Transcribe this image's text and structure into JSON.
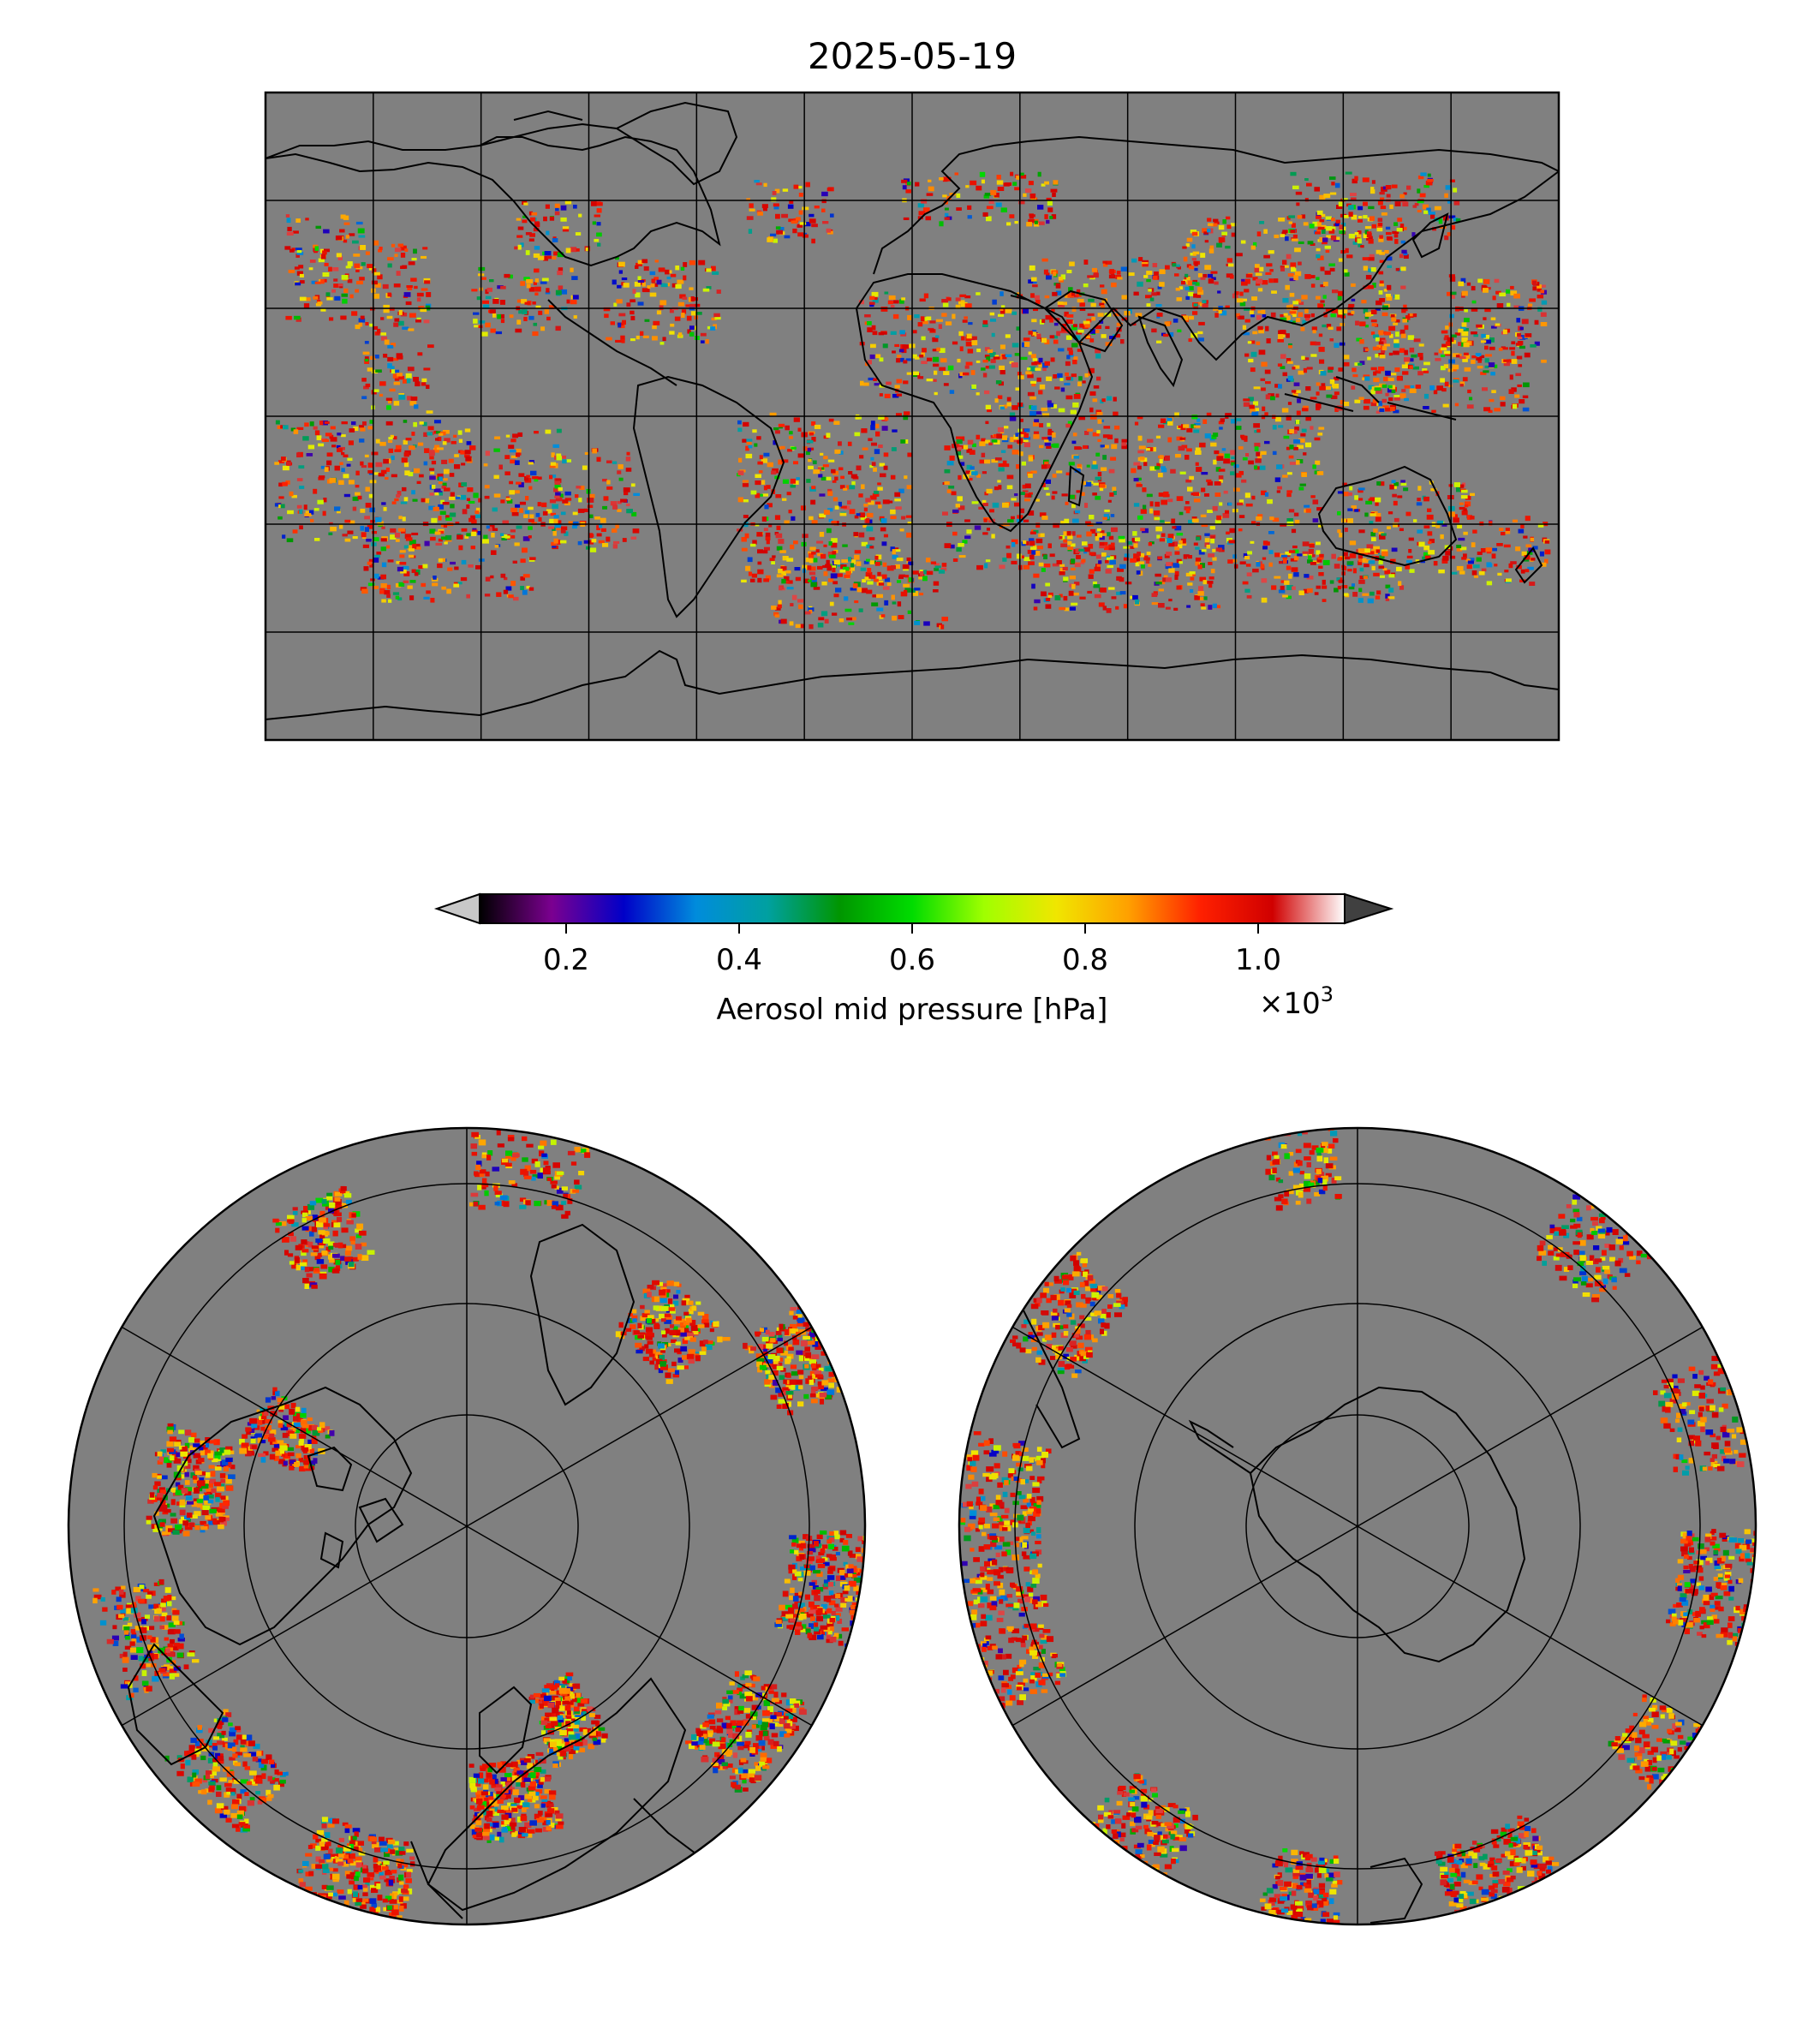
{
  "title": "2025-05-19",
  "colorbar": {
    "label": "Aerosol mid pressure [hPa]",
    "multiplier_base": "×10",
    "multiplier_exp": "3",
    "ticks": [
      "0.2",
      "0.4",
      "0.6",
      "0.8",
      "1.0"
    ],
    "tick_values": [
      0.2,
      0.4,
      0.6,
      0.8,
      1.0
    ],
    "vmin": 0.1,
    "vmax": 1.1,
    "extend": "both",
    "under_color": "#c8c8c8",
    "over_color": "#404040",
    "colormap_stops": [
      "#000000",
      "#7b0090",
      "#0000c8",
      "#008cdc",
      "#00a0a0",
      "#009600",
      "#00dc00",
      "#a0ff00",
      "#f0e600",
      "#ffa000",
      "#ff2000",
      "#d00000",
      "#ffffff"
    ]
  },
  "colors": {
    "ocean_land_fill": "#808080",
    "coastline": "#000000",
    "gridline": "#000000"
  },
  "maps": {
    "global": {
      "projection": "plate-carree",
      "gridlines": "every 30 degrees"
    },
    "north_polar": {
      "projection": "north-polar-stereographic"
    },
    "south_polar": {
      "projection": "south-polar-stereographic"
    }
  }
}
